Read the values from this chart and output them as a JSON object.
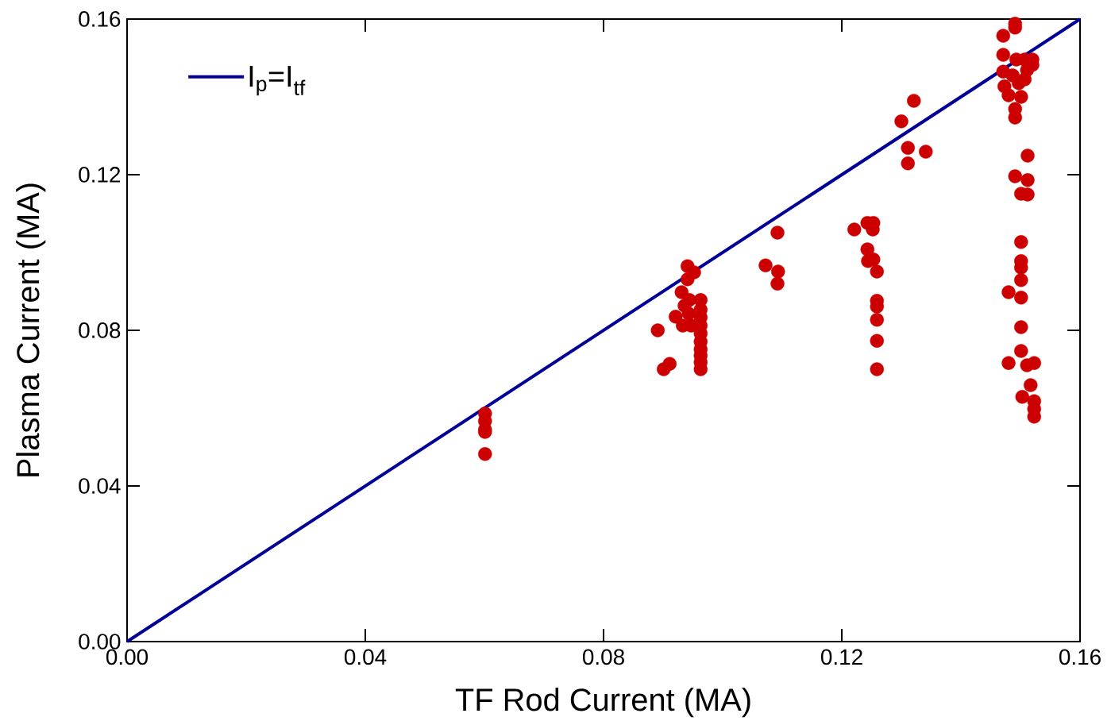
{
  "chart_data": {
    "type": "scatter",
    "xlabel": "TF Rod Current (MA)",
    "ylabel": "Plasma Current (MA)",
    "xlim": [
      0,
      0.16
    ],
    "ylim": [
      0,
      0.16
    ],
    "xticks": [
      {
        "value": 0,
        "label": "0.00"
      },
      {
        "value": 0.04,
        "label": "0.04"
      },
      {
        "value": 0.08,
        "label": "0.08"
      },
      {
        "value": 0.12,
        "label": "0.12"
      },
      {
        "value": 0.16,
        "label": "0.16"
      }
    ],
    "yticks": [
      {
        "value": 0,
        "label": "0.00"
      },
      {
        "value": 0.04,
        "label": "0.04"
      },
      {
        "value": 0.08,
        "label": "0.08"
      },
      {
        "value": 0.12,
        "label": "0.12"
      },
      {
        "value": 0.16,
        "label": "0.16"
      }
    ],
    "legend": "top left",
    "series": [
      {
        "type": "line",
        "name": "I$_{p}$=I$_{tf}$",
        "color": "#000099",
        "marker": "none",
        "x": [
          0,
          0.16
        ],
        "values": [
          0,
          0.16
        ]
      },
      {
        "color": "#cc0000",
        "marker": "circle",
        "x": [
          0.0601,
          0.0601,
          0.0601,
          0.0601,
          0.0601,
          0.0891,
          0.0901,
          0.0911,
          0.0921,
          0.0931,
          0.0933,
          0.0941,
          0.0941,
          0.0952,
          0.0936,
          0.0944,
          0.0943,
          0.0947,
          0.0963,
          0.0963,
          0.0963,
          0.0963,
          0.0963,
          0.0963,
          0.0963,
          0.0963,
          0.0963,
          0.0963,
          0.1072,
          0.1092,
          0.1093,
          0.1092,
          0.1221,
          0.1243,
          0.1253,
          0.1252,
          0.1243,
          0.1244,
          0.1253,
          0.1259,
          0.1259,
          0.1259,
          0.1259,
          0.1259,
          0.1259,
          0.13,
          0.1321,
          0.1311,
          0.1311,
          0.1341,
          0.1491,
          0.1491,
          0.1471,
          0.1471,
          0.1471,
          0.1473,
          0.148,
          0.1491,
          0.1491,
          0.1501,
          0.1507,
          0.152,
          0.152,
          0.1493,
          0.1507,
          0.1487,
          0.1497,
          0.1511,
          0.1512,
          0.1491,
          0.1512,
          0.1501,
          0.1512,
          0.1501,
          0.1501,
          0.1501,
          0.1501,
          0.148,
          0.1501,
          0.1501,
          0.1501,
          0.148,
          0.1523,
          0.1511,
          0.1517,
          0.1503,
          0.1523,
          0.1523,
          0.1523
        ],
        "values": [
          0.0586,
          0.0567,
          0.0545,
          0.0539,
          0.0482,
          0.08,
          0.07,
          0.0714,
          0.0835,
          0.0898,
          0.0812,
          0.0965,
          0.0931,
          0.0949,
          0.0863,
          0.0878,
          0.0843,
          0.0812,
          0.0878,
          0.0853,
          0.0833,
          0.0812,
          0.0792,
          0.0771,
          0.0751,
          0.0735,
          0.0718,
          0.07,
          0.0967,
          0.1051,
          0.0951,
          0.092,
          0.1059,
          0.1076,
          0.1076,
          0.1059,
          0.1008,
          0.0978,
          0.0982,
          0.0951,
          0.0876,
          0.0861,
          0.0827,
          0.0773,
          0.07,
          0.1337,
          0.139,
          0.1269,
          0.1229,
          0.1259,
          0.1588,
          0.1578,
          0.1557,
          0.1508,
          0.1465,
          0.1427,
          0.1404,
          0.1369,
          0.1347,
          0.14,
          0.1445,
          0.1496,
          0.1482,
          0.1496,
          0.1496,
          0.1455,
          0.1435,
          0.1469,
          0.1249,
          0.1196,
          0.1186,
          0.1151,
          0.1149,
          0.1027,
          0.0978,
          0.0961,
          0.0929,
          0.0898,
          0.0884,
          0.0808,
          0.0747,
          0.0716,
          0.0716,
          0.071,
          0.0659,
          0.0629,
          0.0618,
          0.0598,
          0.0578
        ]
      }
    ]
  }
}
